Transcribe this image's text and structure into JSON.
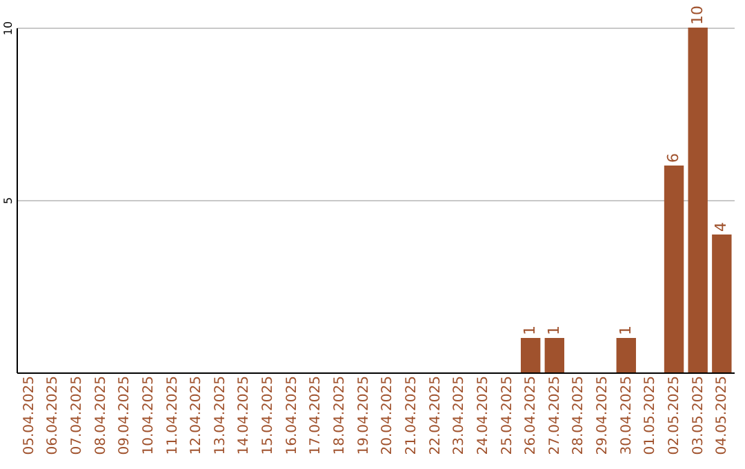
{
  "chart_data": {
    "type": "bar",
    "categories": [
      "05.04.2025",
      "06.04.2025",
      "07.04.2025",
      "08.04.2025",
      "09.04.2025",
      "10.04.2025",
      "11.04.2025",
      "12.04.2025",
      "13.04.2025",
      "14.04.2025",
      "15.04.2025",
      "16.04.2025",
      "17.04.2025",
      "18.04.2025",
      "19.04.2025",
      "20.04.2025",
      "21.04.2025",
      "22.04.2025",
      "23.04.2025",
      "24.04.2025",
      "25.04.2025",
      "26.04.2025",
      "27.04.2025",
      "28.04.2025",
      "29.04.2025",
      "30.04.2025",
      "01.05.2025",
      "02.05.2025",
      "03.05.2025",
      "04.05.2025"
    ],
    "values": [
      0,
      0,
      0,
      0,
      0,
      0,
      0,
      0,
      0,
      0,
      0,
      0,
      0,
      0,
      0,
      0,
      0,
      0,
      0,
      0,
      0,
      1,
      1,
      0,
      0,
      1,
      0,
      6,
      10,
      4
    ],
    "value_labels": [
      null,
      null,
      null,
      null,
      null,
      null,
      null,
      null,
      null,
      null,
      null,
      null,
      null,
      null,
      null,
      null,
      null,
      null,
      null,
      null,
      null,
      "1",
      "1",
      null,
      null,
      "1",
      null,
      "6",
      "10",
      "4"
    ],
    "color": "#a0522d",
    "ylim": [
      0,
      10
    ],
    "yticks": [
      5,
      10
    ],
    "grid": "y"
  }
}
